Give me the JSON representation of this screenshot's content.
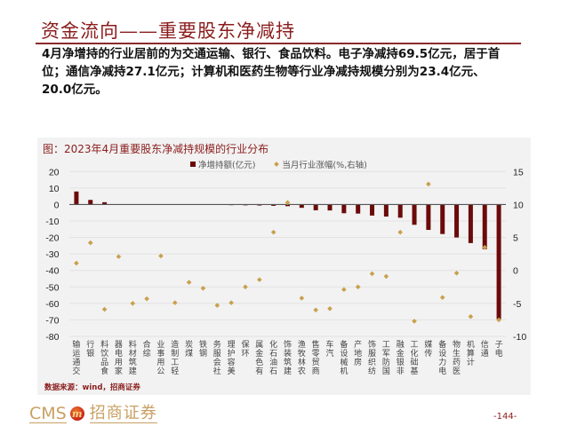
{
  "header": {
    "title": "资金流向——重要股东净减持",
    "accent_color": "#8b1c1c"
  },
  "summary": {
    "lines": [
      "4月净增持的行业居前的为交通运输、银行、食品饮料。电子净减持69.5亿元，居于首",
      "位；通信净减持27.1亿元；计算机和医药生物等行业净减持规模分别为23.4亿元、",
      "20.0亿元。"
    ]
  },
  "chart": {
    "title": "图：2023年4月重要股东净减持规模的行业分布",
    "legend": {
      "bar_label": "净增持额(亿元)",
      "dot_label": "当月行业涨幅(%,右轴)"
    },
    "source": "数据来源：wind，招商证券"
  },
  "footer": {
    "logo_text": "CMS",
    "logo_mark": "m",
    "company": "招商证券",
    "page_number": "-144-"
  },
  "chart_data": {
    "type": "bar",
    "title": "图：2023年4月重要股东净减持规模的行业分布",
    "xlabel": "",
    "ylabel": "",
    "y2label": "",
    "ylim": [
      -80,
      20
    ],
    "yticks": [
      20,
      10,
      0,
      -10,
      -20,
      -30,
      -40,
      -50,
      -60,
      -70,
      -80
    ],
    "y2lim": [
      -10,
      15
    ],
    "y2ticks": [
      15,
      10,
      5,
      0,
      -5,
      -10
    ],
    "grid": true,
    "legend_position": "top",
    "categories": [
      "交通运输",
      "银行",
      "食品饮料",
      "家用电器",
      "建筑材料",
      "综合",
      "公用事业",
      "轻工制造",
      "煤炭",
      "钢铁",
      "社会服务",
      "美容护理",
      "环保",
      "有色金属",
      "石油石化",
      "建筑装饰",
      "农林牧渔",
      "商贸零售",
      "汽车",
      "机械设备",
      "房地产",
      "纺织服饰",
      "国防军工",
      "非银金融",
      "基础化工",
      "传媒",
      "电力设备",
      "医药生物",
      "计算机",
      "通信",
      "电子"
    ],
    "series": [
      {
        "name": "净增持额(亿元)",
        "type": "bar",
        "axis": "left",
        "color": "#6b0a0a",
        "values": [
          7.9,
          2.8,
          1.4,
          0.1,
          0.0,
          0.0,
          0.0,
          0.0,
          -0.1,
          -0.2,
          -0.3,
          -0.4,
          -0.5,
          -0.6,
          -0.8,
          -1.0,
          -2.0,
          -3.5,
          -3.6,
          -5.3,
          -5.5,
          -6.7,
          -7.3,
          -8.0,
          -12.3,
          -15.4,
          -17.9,
          -20.0,
          -23.4,
          -27.1,
          -69.5
        ]
      },
      {
        "name": "当月行业涨幅(%,右轴)",
        "type": "scatter",
        "axis": "right",
        "color": "#c9a04c",
        "values": [
          1.1,
          4.2,
          -5.9,
          2.1,
          -5.0,
          -4.3,
          2.2,
          -4.9,
          -1.8,
          -2.7,
          -5.3,
          -4.9,
          -2.5,
          -1.4,
          5.8,
          10.3,
          -4.2,
          -6.0,
          -5.8,
          -2.9,
          -2.5,
          -0.5,
          -0.9,
          5.8,
          -7.7,
          13.1,
          -4.1,
          -0.4,
          -7.0,
          3.5,
          -7.5
        ]
      }
    ]
  }
}
